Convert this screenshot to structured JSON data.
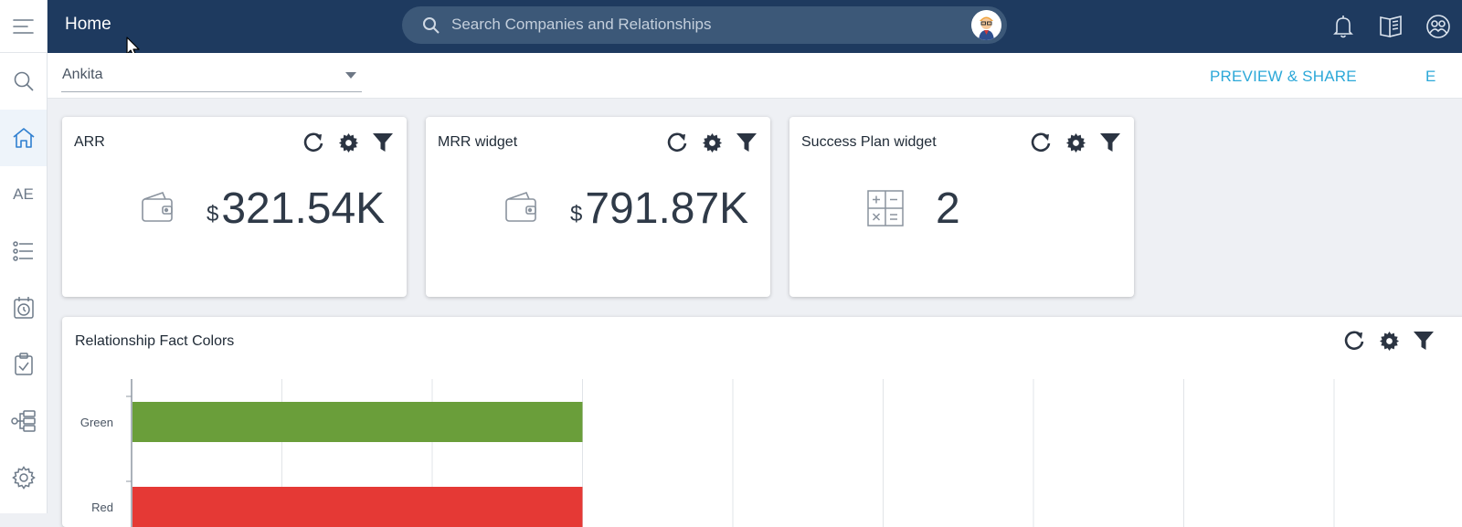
{
  "header": {
    "title": "Home",
    "search_placeholder": "Search Companies and Relationships"
  },
  "left_nav": {
    "ae_label": "AE"
  },
  "subbar": {
    "selected_user": "Ankita",
    "preview_share": "PREVIEW & SHARE",
    "edit_cut": "E"
  },
  "widgets": [
    {
      "title": "ARR",
      "currency": "$",
      "value": "321.54K",
      "icon": "wallet-icon"
    },
    {
      "title": "MRR widget",
      "currency": "$",
      "value": "791.87K",
      "icon": "wallet-icon"
    },
    {
      "title": "Success Plan widget",
      "currency": "",
      "value": "2",
      "icon": "calculator-icon"
    }
  ],
  "chart": {
    "title": "Relationship Fact Colors"
  },
  "chart_data": {
    "type": "bar",
    "orientation": "horizontal",
    "categories": [
      "Green",
      "Red"
    ],
    "series": [
      {
        "values": [
          3,
          3
        ],
        "colors": [
          "#6a9e3a",
          "#e53935"
        ]
      }
    ],
    "title": "Relationship Fact Colors",
    "xlabel": "",
    "ylabel": "",
    "xlim": [
      0,
      9
    ],
    "grid": true
  }
}
